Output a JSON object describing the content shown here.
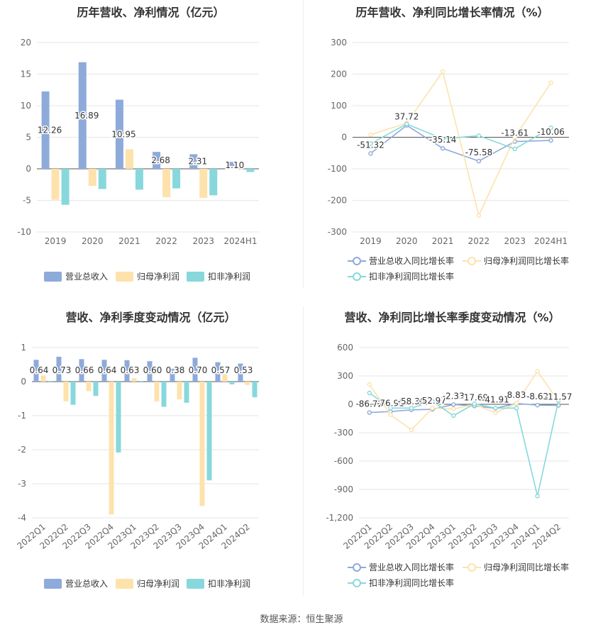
{
  "source": "数据来源：恒生聚源",
  "charts": {
    "c1": {
      "title": "历年营收、净利情况（亿元）"
    },
    "c2": {
      "title": "历年营收、净利同比增长率情况（%）"
    },
    "c3": {
      "title": "营收、净利季度变动情况（亿元）"
    },
    "c4": {
      "title": "营收、净利同比增长率季度变动情况（%）"
    }
  },
  "chart_data": [
    {
      "type": "bar",
      "title": "历年营收、净利情况（亿元）",
      "categories": [
        "2019",
        "2020",
        "2021",
        "2022",
        "2023",
        "2024H1"
      ],
      "ylim": [
        -10,
        20
      ],
      "yticks": [
        -10,
        -5,
        0,
        5,
        10,
        15,
        20
      ],
      "legend_position": "bottom",
      "series": [
        {
          "name": "营业总收入",
          "color": "#8eaadb",
          "values": [
            12.26,
            16.89,
            10.95,
            2.68,
            2.31,
            1.1
          ],
          "labels": [
            "12.26",
            "16.89",
            "10.95",
            "2.68",
            "2.31",
            "1.10"
          ]
        },
        {
          "name": "归母净利润",
          "color": "#fde2ac",
          "values": [
            -4.9,
            -2.7,
            3.1,
            -4.5,
            -4.6,
            0.3
          ]
        },
        {
          "name": "扣非净利润",
          "color": "#87d8dc",
          "values": [
            -5.7,
            -3.2,
            -3.3,
            -3.1,
            -4.2,
            -0.5
          ]
        }
      ]
    },
    {
      "type": "line",
      "title": "历年营收、净利同比增长率情况（%）",
      "categories": [
        "2019",
        "2020",
        "2021",
        "2022",
        "2023",
        "2024H1"
      ],
      "ylim": [
        -300,
        300
      ],
      "yticks": [
        -300,
        -200,
        -100,
        0,
        100,
        200,
        300
      ],
      "legend_position": "bottom",
      "series": [
        {
          "name": "营业总收入同比增长率",
          "color": "#8eaadb",
          "values": [
            -51.32,
            37.72,
            -35.14,
            -75.58,
            -13.61,
            -10.06
          ],
          "labels": [
            "-51.32",
            "37.72",
            "-35.14",
            "-75.58",
            "-13.61",
            "-10.06"
          ]
        },
        {
          "name": "归母净利润同比增长率",
          "color": "#fde2ac",
          "values": [
            8,
            45,
            208,
            -248,
            0,
            173
          ]
        },
        {
          "name": "扣非净利润同比增长率",
          "color": "#87d8dc",
          "values": [
            -20,
            42,
            -5,
            5,
            -37,
            30
          ]
        }
      ]
    },
    {
      "type": "bar",
      "title": "营收、净利季度变动情况（亿元）",
      "categories": [
        "2022Q1",
        "2022Q2",
        "2022Q3",
        "2022Q4",
        "2023Q1",
        "2023Q2",
        "2023Q3",
        "2023Q4",
        "2024Q1",
        "2024Q2"
      ],
      "ylim": [
        -4,
        1
      ],
      "yticks": [
        -4,
        -3,
        -2,
        -1,
        0,
        1
      ],
      "legend_position": "bottom",
      "series": [
        {
          "name": "营业总收入",
          "color": "#8eaadb",
          "values": [
            0.64,
            0.73,
            0.66,
            0.64,
            0.63,
            0.6,
            0.38,
            0.7,
            0.57,
            0.53
          ],
          "labels": [
            "0.64",
            "0.73",
            "0.66",
            "0.64",
            "0.63",
            "0.60",
            "0.38",
            "0.70",
            "0.57",
            "0.53"
          ]
        },
        {
          "name": "归母净利润",
          "color": "#fde2ac",
          "values": [
            0.18,
            -0.58,
            -0.28,
            -3.9,
            0.1,
            -0.58,
            -0.52,
            -3.65,
            0.22,
            -0.1
          ]
        },
        {
          "name": "扣非净利润",
          "color": "#87d8dc",
          "values": [
            0.02,
            -0.68,
            -0.42,
            -2.08,
            0.02,
            -0.74,
            -0.62,
            -2.9,
            -0.08,
            -0.46
          ]
        }
      ]
    },
    {
      "type": "line",
      "title": "营收、净利同比增长率季度变动情况（%）",
      "categories": [
        "2022Q1",
        "2022Q2",
        "2022Q3",
        "2022Q4",
        "2023Q1",
        "2023Q2",
        "2023Q3",
        "2023Q4",
        "2024Q1",
        "2024Q2"
      ],
      "ylim": [
        -1200,
        600
      ],
      "yticks": [
        -1200,
        -900,
        -600,
        -300,
        0,
        300,
        600
      ],
      "legend_position": "bottom",
      "series": [
        {
          "name": "营业总收入同比增长率",
          "color": "#8eaadb",
          "values": [
            -86.72,
            -76.91,
            -58.3,
            -52.97,
            -2.33,
            -17.69,
            -41.91,
            8.83,
            -8.62,
            -11.57
          ],
          "labels": [
            "-86.72",
            "-76.91",
            "-58.30",
            "-52.97",
            "-2.33",
            "-17.69",
            "-41.91",
            "8.83",
            "-8.62",
            "-11.57"
          ]
        },
        {
          "name": "归母净利润同比增长率",
          "color": "#fde2ac",
          "values": [
            210,
            -110,
            -270,
            -40,
            -50,
            0,
            -90,
            10,
            350,
            30
          ]
        },
        {
          "name": "扣非净利润同比增长率",
          "color": "#87d8dc",
          "values": [
            120,
            -40,
            -40,
            30,
            -120,
            5,
            -40,
            -40,
            -970,
            40
          ]
        }
      ]
    }
  ]
}
